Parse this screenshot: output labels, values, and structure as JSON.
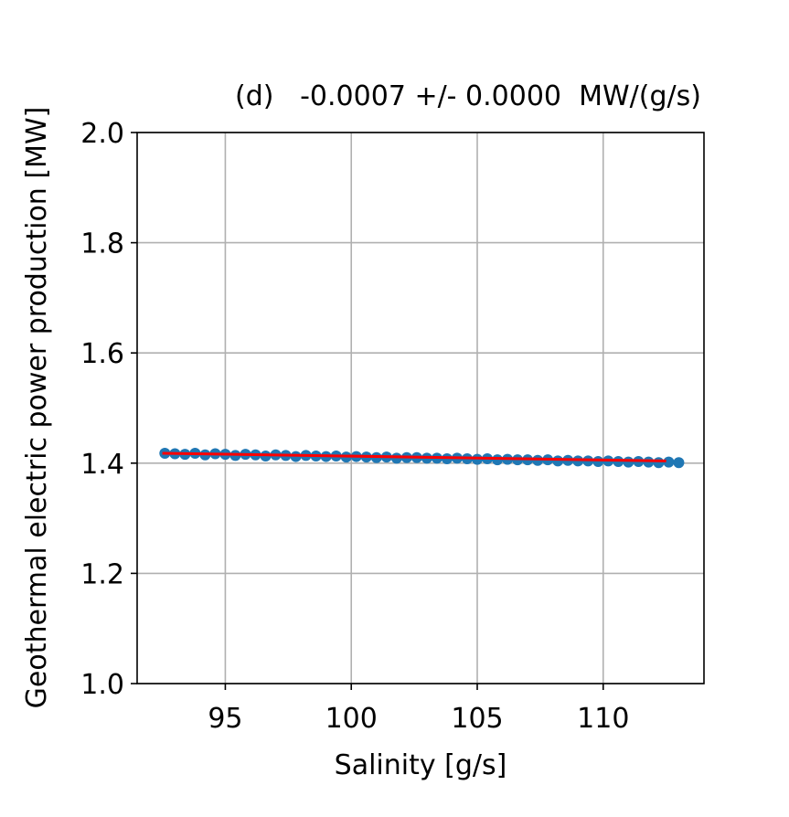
{
  "chart_data": {
    "type": "scatter",
    "title": "(d)   -0.0007 +/- 0.0000  MW/(g/s)",
    "xlabel": "Salinity [g/s]",
    "ylabel": "Geothermal electric power production [MW]",
    "xlim": [
      91.5,
      114.0
    ],
    "ylim": [
      1.0,
      2.0
    ],
    "xticks": [
      95,
      100,
      105,
      110
    ],
    "xtick_labels": [
      "95",
      "100",
      "105",
      "110"
    ],
    "yticks": [
      1.0,
      1.2,
      1.4,
      1.6,
      1.8,
      2.0
    ],
    "ytick_labels": [
      "1.0",
      "1.2",
      "1.4",
      "1.6",
      "1.8",
      "2.0"
    ],
    "grid": true,
    "series": [
      {
        "kind": "scatter",
        "color": "#1f77b4",
        "points": [
          [
            92.6,
            1.418
          ],
          [
            93.0,
            1.417
          ],
          [
            93.4,
            1.416
          ],
          [
            93.8,
            1.418
          ],
          [
            94.2,
            1.415
          ],
          [
            94.6,
            1.417
          ],
          [
            95.0,
            1.416
          ],
          [
            95.4,
            1.414
          ],
          [
            95.8,
            1.416
          ],
          [
            96.2,
            1.415
          ],
          [
            96.6,
            1.413
          ],
          [
            97.0,
            1.415
          ],
          [
            97.4,
            1.414
          ],
          [
            97.8,
            1.412
          ],
          [
            98.2,
            1.414
          ],
          [
            98.6,
            1.413
          ],
          [
            99.0,
            1.412
          ],
          [
            99.4,
            1.413
          ],
          [
            99.8,
            1.411
          ],
          [
            100.2,
            1.412
          ],
          [
            100.6,
            1.411
          ],
          [
            101.0,
            1.41
          ],
          [
            101.4,
            1.411
          ],
          [
            101.8,
            1.409
          ],
          [
            102.2,
            1.41
          ],
          [
            102.6,
            1.41
          ],
          [
            103.0,
            1.409
          ],
          [
            103.4,
            1.409
          ],
          [
            103.8,
            1.408
          ],
          [
            104.2,
            1.409
          ],
          [
            104.6,
            1.408
          ],
          [
            105.0,
            1.407
          ],
          [
            105.4,
            1.408
          ],
          [
            105.8,
            1.406
          ],
          [
            106.2,
            1.407
          ],
          [
            106.6,
            1.406
          ],
          [
            107.0,
            1.406
          ],
          [
            107.4,
            1.405
          ],
          [
            107.8,
            1.406
          ],
          [
            108.2,
            1.404
          ],
          [
            108.6,
            1.405
          ],
          [
            109.0,
            1.404
          ],
          [
            109.4,
            1.404
          ],
          [
            109.8,
            1.403
          ],
          [
            110.2,
            1.404
          ],
          [
            110.6,
            1.403
          ],
          [
            111.0,
            1.402
          ],
          [
            111.4,
            1.403
          ],
          [
            111.8,
            1.402
          ],
          [
            112.2,
            1.401
          ],
          [
            112.6,
            1.402
          ],
          [
            113.0,
            1.401
          ]
        ]
      },
      {
        "kind": "line",
        "color": "#ff0000",
        "x": [
          92.5,
          112.5
        ],
        "y": [
          1.418,
          1.404
        ]
      }
    ]
  }
}
